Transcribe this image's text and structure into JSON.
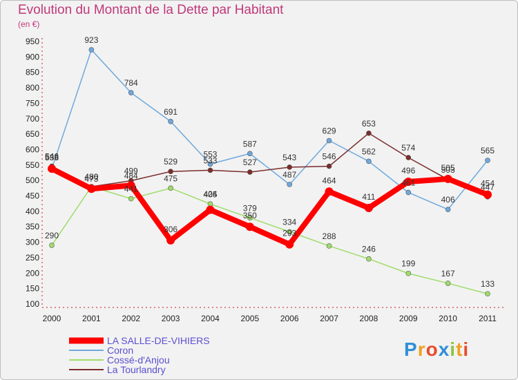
{
  "chart_data": {
    "type": "line",
    "title": "Evolution du Montant de la Dette par Habitant",
    "unit_label": "(en €)",
    "x": [
      "2000",
      "2001",
      "2002",
      "2003",
      "2004",
      "2005",
      "2006",
      "2007",
      "2008",
      "2009",
      "2010",
      "2011"
    ],
    "ylim": [
      100,
      950
    ],
    "yticks": [
      100,
      150,
      200,
      250,
      300,
      350,
      400,
      450,
      500,
      550,
      600,
      650,
      700,
      750,
      800,
      850,
      900,
      950
    ],
    "grid": false,
    "legend_position": "bottom-left",
    "series": [
      {
        "name": "LA SALLE-DE-VIHIERS",
        "color": "#ff0000",
        "width": 8,
        "values": [
          538,
          473,
          484,
          306,
          405,
          350,
          293,
          464,
          411,
          496,
          505,
          454
        ]
      },
      {
        "name": "Coron",
        "color": "#6fa8dc",
        "width": 1.5,
        "values": [
          538,
          923,
          784,
          691,
          553,
          587,
          487,
          629,
          562,
          461,
          406,
          565
        ]
      },
      {
        "name": "Cossé-d'Anjou",
        "color": "#9fdc6a",
        "width": 1.5,
        "values": [
          290,
          480,
          441,
          475,
          424,
          379,
          334,
          288,
          246,
          199,
          167,
          133
        ]
      },
      {
        "name": "La Tourlandry",
        "color": "#7b2c2c",
        "width": 1.5,
        "values": [
          546,
          480,
          499,
          529,
          533,
          527,
          543,
          546,
          653,
          574,
          503,
          447
        ]
      }
    ]
  },
  "logo": {
    "letters": [
      "P",
      "r",
      "o",
      "x",
      "i",
      "t",
      "i"
    ],
    "colors": [
      "#2f8fd8",
      "#f0a020",
      "#e84c2c",
      "#2f8fd8",
      "#8cc63f",
      "#f0a020",
      "#e84c2c"
    ]
  }
}
